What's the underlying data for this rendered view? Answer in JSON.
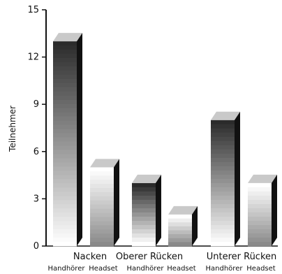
{
  "chart_data": {
    "type": "bar",
    "ylabel": "Teilnehmer",
    "ylim": [
      0,
      15
    ],
    "yticks": [
      "0",
      "3",
      "6",
      "9",
      "12",
      "15"
    ],
    "groups": [
      {
        "label": "Nacken",
        "bars": [
          {
            "label": "Handhörer",
            "value": 13
          },
          {
            "label": "Headset",
            "value": 5
          }
        ]
      },
      {
        "label": "Oberer Rücken",
        "bars": [
          {
            "label": "Handhörer",
            "value": 4
          },
          {
            "label": "Headset",
            "value": 2
          }
        ]
      },
      {
        "label": "Unterer Rücken",
        "bars": [
          {
            "label": "Handhörer",
            "value": 8
          },
          {
            "label": "Headset",
            "value": 4
          }
        ]
      }
    ],
    "style": {
      "darkBarTop": "#2b2b2b",
      "darkBarBottom": "#ffffff",
      "lightBarTop": "#ffffff",
      "lightBarBottom": "#8a8a8a",
      "barTopFace": "#c9c9c9",
      "barSideFace": "#111111",
      "axis": "#111111"
    }
  }
}
